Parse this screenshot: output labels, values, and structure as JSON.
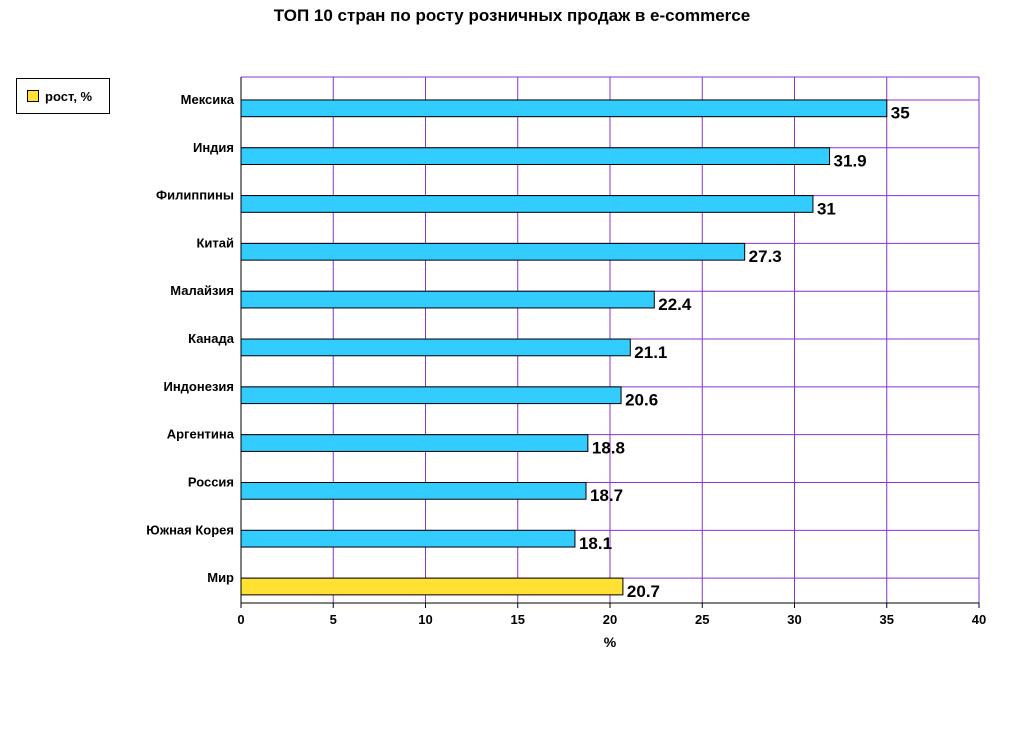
{
  "chart_data": {
    "type": "bar",
    "orientation": "horizontal",
    "title": "ТОП 10 стран по росту розничных продаж в e-commerce",
    "xlabel": "%",
    "ylabel": "",
    "xlim": [
      0,
      40
    ],
    "x_ticks": [
      0,
      5,
      10,
      15,
      20,
      25,
      30,
      35,
      40
    ],
    "grid": true,
    "legend": {
      "label": "рост, %",
      "color": "#ffe033",
      "placement": "top-left"
    },
    "categories": [
      "Мексика",
      "Индия",
      "Филиппины",
      "Китай",
      "Малайзия",
      "Канада",
      "Индонезия",
      "Аргентина",
      "Россия",
      "Южная Корея",
      "Мир"
    ],
    "values": [
      35,
      31.9,
      31,
      27.3,
      22.4,
      21.1,
      20.6,
      18.8,
      18.7,
      18.1,
      20.7
    ],
    "value_labels": [
      "35",
      "31.9",
      "31",
      "27.3",
      "22.4",
      "21.1",
      "20.6",
      "18.8",
      "18.7",
      "18.1",
      "20.7"
    ],
    "bar_colors": [
      "#33ccff",
      "#33ccff",
      "#33ccff",
      "#33ccff",
      "#33ccff",
      "#33ccff",
      "#33ccff",
      "#33ccff",
      "#33ccff",
      "#33ccff",
      "#ffe033"
    ],
    "grid_color": "#8833cc"
  }
}
